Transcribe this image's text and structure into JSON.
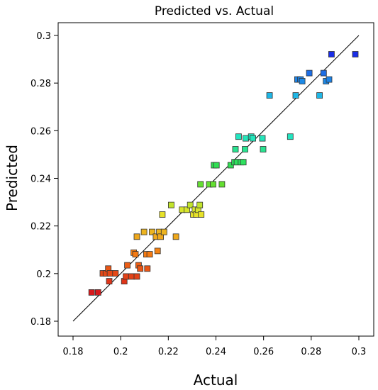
{
  "chart_data": {
    "type": "scatter",
    "title": "Predicted vs. Actual",
    "xlabel": "Actual",
    "ylabel": "Predicted",
    "xlim": [
      0.18,
      0.3
    ],
    "ylim": [
      0.18,
      0.3
    ],
    "xticks": [
      "0.18",
      "0.2",
      "0.22",
      "0.24",
      "0.26",
      "0.28",
      "0.3"
    ],
    "yticks": [
      "0.18",
      "0.2",
      "0.22",
      "0.24",
      "0.26",
      "0.28",
      "0.3"
    ],
    "grid": false,
    "reference_line": {
      "from": [
        0.18,
        0.18
      ],
      "to": [
        0.3,
        0.3
      ]
    },
    "colormap": [
      "#d7191c",
      "#f57e12",
      "#e6e62a",
      "#33dd33",
      "#22e6cc",
      "#1fb4e6",
      "#1a2ee6"
    ],
    "points": [
      [
        0.1878,
        0.1921
      ],
      [
        0.1905,
        0.1921
      ],
      [
        0.1925,
        0.2001
      ],
      [
        0.1938,
        0.2001
      ],
      [
        0.1948,
        0.2021
      ],
      [
        0.1955,
        0.2001
      ],
      [
        0.1952,
        0.1968
      ],
      [
        0.1978,
        0.2001
      ],
      [
        0.2015,
        0.1968
      ],
      [
        0.2022,
        0.1988
      ],
      [
        0.2028,
        0.2035
      ],
      [
        0.2045,
        0.1988
      ],
      [
        0.2055,
        0.2088
      ],
      [
        0.2062,
        0.2081
      ],
      [
        0.2068,
        0.1988
      ],
      [
        0.2068,
        0.2155
      ],
      [
        0.2075,
        0.2035
      ],
      [
        0.2082,
        0.2021
      ],
      [
        0.2098,
        0.2175
      ],
      [
        0.2108,
        0.2081
      ],
      [
        0.2112,
        0.2021
      ],
      [
        0.2122,
        0.2081
      ],
      [
        0.2132,
        0.2175
      ],
      [
        0.2148,
        0.2155
      ],
      [
        0.2155,
        0.2095
      ],
      [
        0.2162,
        0.2175
      ],
      [
        0.2168,
        0.2155
      ],
      [
        0.2175,
        0.2248
      ],
      [
        0.2182,
        0.2175
      ],
      [
        0.2212,
        0.2288
      ],
      [
        0.2232,
        0.2155
      ],
      [
        0.2258,
        0.2268
      ],
      [
        0.2278,
        0.2268
      ],
      [
        0.2292,
        0.2288
      ],
      [
        0.2305,
        0.2248
      ],
      [
        0.2312,
        0.2268
      ],
      [
        0.2318,
        0.2248
      ],
      [
        0.2325,
        0.2268
      ],
      [
        0.2332,
        0.2288
      ],
      [
        0.2338,
        0.2248
      ],
      [
        0.2335,
        0.2375
      ],
      [
        0.2372,
        0.2375
      ],
      [
        0.2388,
        0.2375
      ],
      [
        0.2392,
        0.2455
      ],
      [
        0.2402,
        0.2455
      ],
      [
        0.2425,
        0.2375
      ],
      [
        0.2462,
        0.2455
      ],
      [
        0.2478,
        0.2468
      ],
      [
        0.2482,
        0.2522
      ],
      [
        0.2488,
        0.2468
      ],
      [
        0.2495,
        0.2575
      ],
      [
        0.2505,
        0.2468
      ],
      [
        0.2515,
        0.2468
      ],
      [
        0.2522,
        0.2522
      ],
      [
        0.2525,
        0.2568
      ],
      [
        0.2548,
        0.2575
      ],
      [
        0.2555,
        0.2568
      ],
      [
        0.2595,
        0.2568
      ],
      [
        0.2598,
        0.2522
      ],
      [
        0.2625,
        0.2748
      ],
      [
        0.2712,
        0.2575
      ],
      [
        0.2735,
        0.2748
      ],
      [
        0.2742,
        0.2815
      ],
      [
        0.2755,
        0.2815
      ],
      [
        0.2762,
        0.2808
      ],
      [
        0.2792,
        0.2842
      ],
      [
        0.2835,
        0.2748
      ],
      [
        0.2852,
        0.2842
      ],
      [
        0.2862,
        0.2808
      ],
      [
        0.2875,
        0.2815
      ],
      [
        0.2885,
        0.2921
      ],
      [
        0.2985,
        0.2921
      ]
    ]
  }
}
